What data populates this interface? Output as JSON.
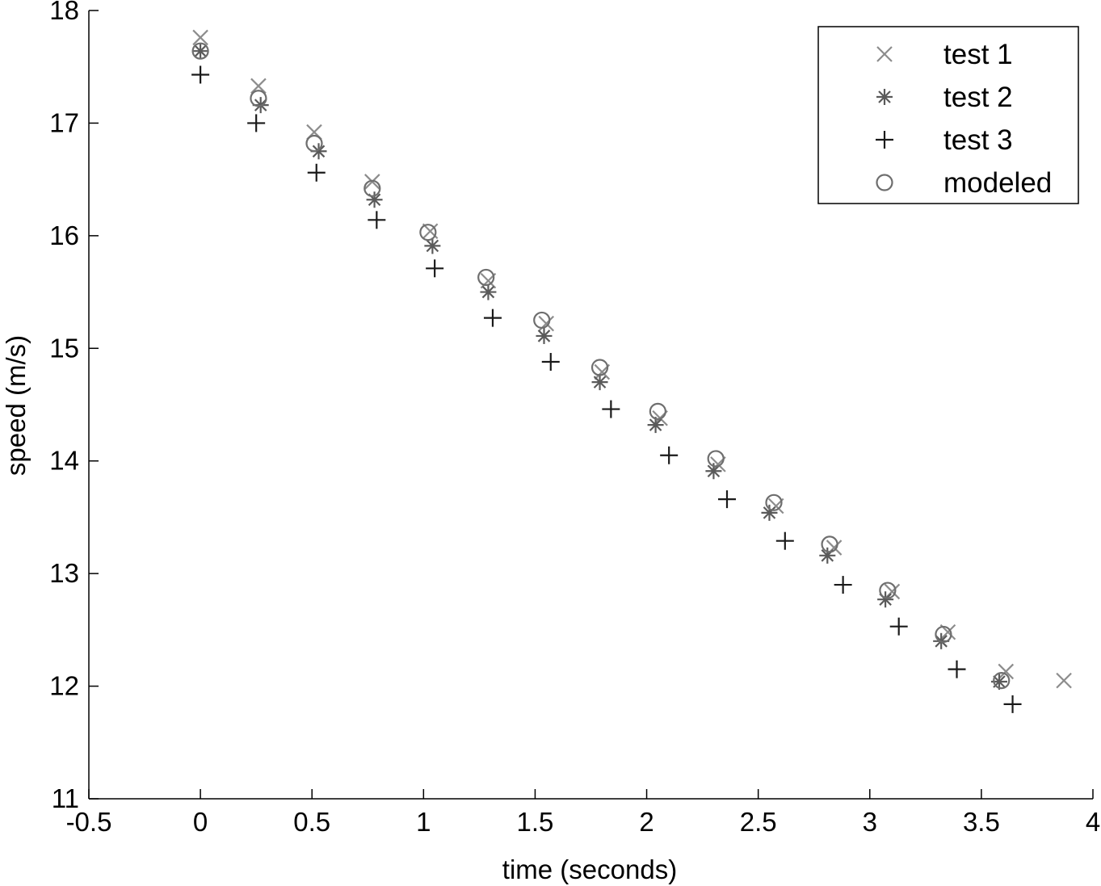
{
  "chart_data": {
    "type": "scatter",
    "xlabel": "time (seconds)",
    "ylabel": "speed (m/s)",
    "xlim": [
      -0.5,
      4
    ],
    "ylim": [
      11,
      18
    ],
    "xticks": [
      "-0.5",
      "0",
      "0.5",
      "1",
      "1.5",
      "2",
      "2.5",
      "3",
      "3.5",
      "4"
    ],
    "yticks": [
      "11",
      "12",
      "13",
      "14",
      "15",
      "16",
      "17",
      "18"
    ],
    "grid": false,
    "legend_position": "top-right",
    "series": [
      {
        "name": "test 1",
        "marker": "x",
        "color": "#8c8c8c",
        "x": [
          0,
          0.26,
          0.51,
          0.77,
          1.03,
          1.29,
          1.55,
          1.8,
          2.06,
          2.32,
          2.58,
          2.84,
          3.1,
          3.35,
          3.61,
          3.87
        ],
        "y": [
          17.76,
          17.33,
          16.92,
          16.48,
          16.04,
          15.6,
          15.22,
          14.79,
          14.38,
          13.97,
          13.6,
          13.23,
          12.84,
          12.48,
          12.13,
          12.05
        ]
      },
      {
        "name": "test 2",
        "marker": "asterisk",
        "color": "#5a5a5a",
        "x": [
          0,
          0.27,
          0.53,
          0.78,
          1.04,
          1.29,
          1.54,
          1.79,
          2.04,
          2.3,
          2.55,
          2.81,
          3.07,
          3.32,
          3.58
        ],
        "y": [
          17.64,
          17.16,
          16.75,
          16.32,
          15.91,
          15.5,
          15.11,
          14.7,
          14.32,
          13.91,
          13.54,
          13.16,
          12.77,
          12.4,
          12.04
        ]
      },
      {
        "name": "test 3",
        "marker": "plus",
        "color": "#1a1a1a",
        "x": [
          0,
          0.25,
          0.52,
          0.79,
          1.05,
          1.31,
          1.57,
          1.84,
          2.1,
          2.36,
          2.62,
          2.88,
          3.13,
          3.39,
          3.64
        ],
        "y": [
          17.43,
          17.0,
          16.56,
          16.14,
          15.71,
          15.27,
          14.88,
          14.46,
          14.05,
          13.66,
          13.29,
          12.9,
          12.53,
          12.15,
          11.84
        ]
      },
      {
        "name": "modeled",
        "marker": "circle",
        "color": "#6e6e6e",
        "x": [
          0,
          0.26,
          0.51,
          0.77,
          1.02,
          1.28,
          1.53,
          1.79,
          2.05,
          2.31,
          2.57,
          2.82,
          3.08,
          3.33,
          3.59
        ],
        "y": [
          17.64,
          17.22,
          16.82,
          16.42,
          16.03,
          15.63,
          15.25,
          14.83,
          14.44,
          14.02,
          13.63,
          13.26,
          12.85,
          12.46,
          12.05
        ]
      }
    ]
  }
}
